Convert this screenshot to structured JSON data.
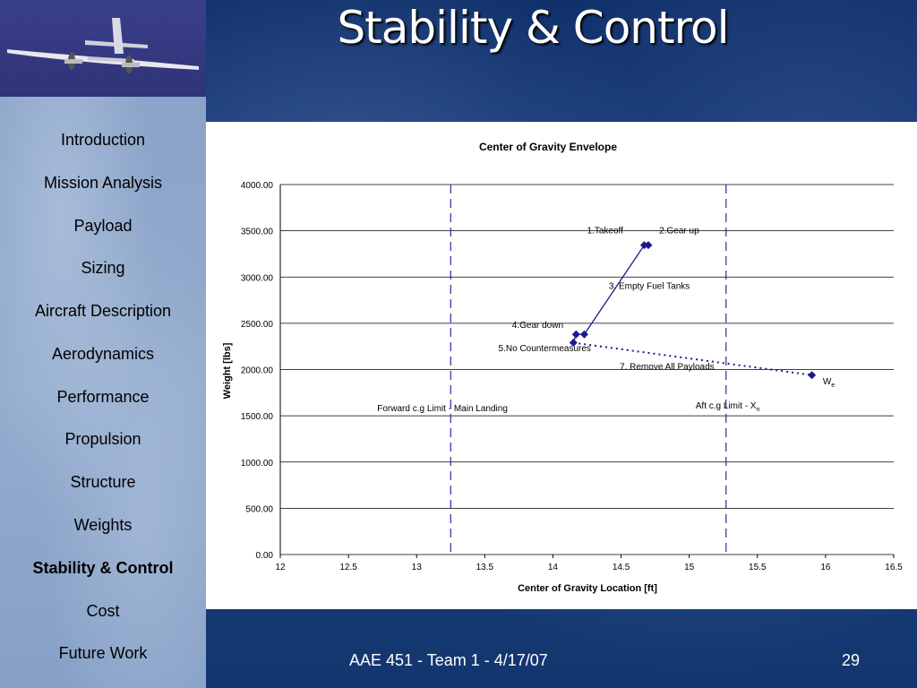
{
  "slide": {
    "title": "Stability & Control",
    "footer": "AAE 451 - Team 1 - 4/17/07",
    "page_number": "29"
  },
  "sidebar": {
    "items": [
      {
        "label": "Introduction",
        "active": false
      },
      {
        "label": "Mission Analysis",
        "active": false
      },
      {
        "label": "Payload",
        "active": false
      },
      {
        "label": "Sizing",
        "active": false
      },
      {
        "label": "Aircraft Description",
        "active": false
      },
      {
        "label": "Aerodynamics",
        "active": false
      },
      {
        "label": "Performance",
        "active": false
      },
      {
        "label": "Propulsion",
        "active": false
      },
      {
        "label": "Structure",
        "active": false
      },
      {
        "label": "Weights",
        "active": false
      },
      {
        "label": "Stability & Control",
        "active": true
      },
      {
        "label": "Cost",
        "active": false
      },
      {
        "label": "Future Work",
        "active": false
      }
    ]
  },
  "chart_data": {
    "type": "scatter",
    "title": "Center of Gravity Envelope",
    "xlabel": "Center of Gravity Location [ft]",
    "ylabel": "Weight [lbs]",
    "xlim": [
      12,
      16.5
    ],
    "ylim": [
      0,
      4000
    ],
    "x_ticks": [
      "12",
      "12.5",
      "13",
      "13.5",
      "14",
      "14.5",
      "15",
      "15.5",
      "16",
      "16.5"
    ],
    "y_ticks": [
      "0.00",
      "500.00",
      "1000.00",
      "1500.00",
      "2000.00",
      "2500.00",
      "3000.00",
      "3500.00",
      "4000.00"
    ],
    "grid": "horizontal",
    "series": [
      {
        "style": "solid",
        "color": "#1a1a8c",
        "points": [
          [
            14.15,
            2290
          ],
          [
            14.17,
            2380
          ],
          [
            14.23,
            2380
          ],
          [
            14.67,
            3345
          ],
          [
            14.7,
            3345
          ]
        ]
      },
      {
        "style": "dotted",
        "color": "#1a1a8c",
        "points": [
          [
            14.15,
            2290
          ],
          [
            15.9,
            1940
          ]
        ]
      }
    ],
    "limits": [
      {
        "x": 13.25,
        "label": "Forward c.g Limit - Main Landing"
      },
      {
        "x": 15.27,
        "label": "Aft c.g Limit - X",
        "subscript": "n"
      }
    ],
    "annotations": [
      {
        "text": "1.Takeoff",
        "x": 14.25,
        "y": 3470
      },
      {
        "text": "2.Gear up",
        "x": 14.78,
        "y": 3470
      },
      {
        "text": "3. Empty Fuel Tanks",
        "x": 14.41,
        "y": 2870
      },
      {
        "text": "4.Gear down",
        "x": 13.7,
        "y": 2450
      },
      {
        "text": "5.No Countermeasures",
        "x": 13.6,
        "y": 2200
      },
      {
        "text": "7. Remove All Payloads",
        "x": 14.49,
        "y": 2000
      },
      {
        "text": "W",
        "subscript": "e",
        "x": 15.98,
        "y": 1840
      }
    ],
    "colors": {
      "marker": "#1a1a8c",
      "limit_line": "#2a2aaa",
      "grid": "#000000"
    }
  }
}
